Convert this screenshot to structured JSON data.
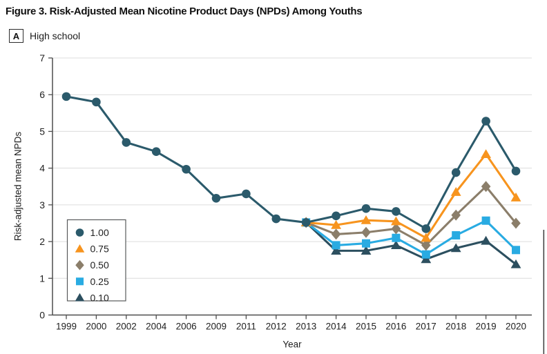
{
  "figure": {
    "title": "Figure 3.  Risk-Adjusted Mean Nicotine Product Days (NPDs) Among Youths",
    "panel_label": "A",
    "panel_title": "High school"
  },
  "chart_data": {
    "type": "line",
    "title": "Risk-Adjusted Mean Nicotine Product Days (NPDs) Among Youths — High school",
    "xlabel": "Year",
    "ylabel": "Risk-adjusted mean NPDs",
    "ylim": [
      0,
      7
    ],
    "yticks": [
      0,
      1,
      2,
      3,
      4,
      5,
      6,
      7
    ],
    "grid": true,
    "legend_position": "middle-left",
    "categories": [
      "1999",
      "2000",
      "2002",
      "2004",
      "2006",
      "2009",
      "2011",
      "2012",
      "2013",
      "2014",
      "2015",
      "2016",
      "2017",
      "2018",
      "2019",
      "2020"
    ],
    "series": [
      {
        "name": "1.00",
        "marker": "circle",
        "color": "#2b5a6b",
        "values": [
          5.95,
          5.8,
          4.7,
          4.45,
          3.97,
          3.18,
          3.3,
          2.62,
          2.52,
          2.7,
          2.9,
          2.82,
          2.35,
          3.88,
          5.28,
          3.92
        ]
      },
      {
        "name": "0.75",
        "marker": "triangle",
        "color": "#f7941e",
        "values": [
          null,
          null,
          null,
          null,
          null,
          null,
          null,
          null,
          2.52,
          2.45,
          2.58,
          2.55,
          2.1,
          3.35,
          4.38,
          3.2
        ]
      },
      {
        "name": "0.50",
        "marker": "diamond",
        "color": "#8b7e6a",
        "values": [
          null,
          null,
          null,
          null,
          null,
          null,
          null,
          null,
          2.52,
          2.2,
          2.25,
          2.35,
          1.9,
          2.72,
          3.5,
          2.5
        ]
      },
      {
        "name": "0.25",
        "marker": "square",
        "color": "#29abe2",
        "values": [
          null,
          null,
          null,
          null,
          null,
          null,
          null,
          null,
          2.52,
          1.9,
          1.95,
          2.1,
          1.65,
          2.17,
          2.57,
          1.77
        ]
      },
      {
        "name": "0.10",
        "marker": "triangle",
        "color": "#2c4f5f",
        "values": [
          null,
          null,
          null,
          null,
          null,
          null,
          null,
          null,
          2.52,
          1.75,
          1.75,
          1.9,
          1.52,
          1.82,
          2.02,
          1.38
        ]
      }
    ]
  },
  "colors": {
    "axis": "#4d4d4d",
    "grid": "#dcdcdc",
    "text": "#1f1f1f",
    "legend_border": "#58595b",
    "background": "#ffffff"
  }
}
